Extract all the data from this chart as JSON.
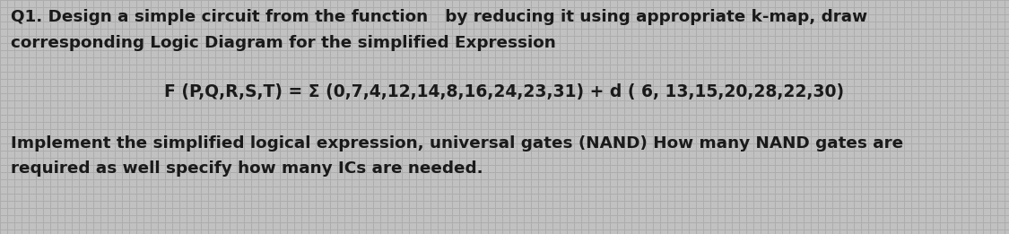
{
  "background_color": "#b8b8b8",
  "grid_color_light": "#c8c8c8",
  "grid_color_dark": "#a8a8a8",
  "text_color": "#1a1a1a",
  "line1": "Q1. Design a simple circuit from the function   by reducing it using appropriate k-map, draw",
  "line2": "corresponding Logic Diagram for the simplified Expression",
  "line3": "F (P,Q,R,S,T) = Σ (0,7,4,12,14,8,16,24,23,31) + d ( 6, 13,15,20,28,22,30)",
  "line4": "Implement the simplified logical expression, universal gates (NAND) How many NAND gates are",
  "line5": "required as well specify how many ICs are needed.",
  "fig_width": 11.25,
  "fig_height": 2.61,
  "dpi": 100,
  "font_size_main": 13.2,
  "font_size_formula": 13.5
}
